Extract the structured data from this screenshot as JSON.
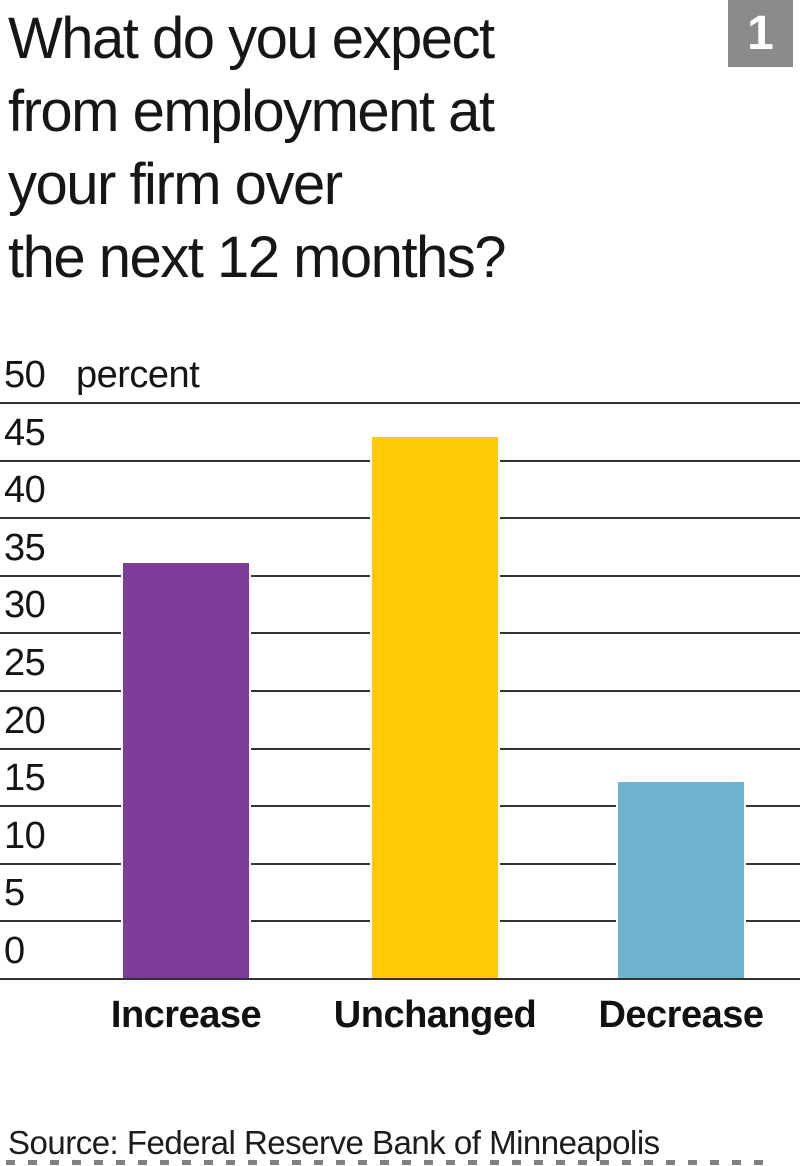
{
  "figure_number": "1",
  "title": "What do you expect\nfrom employment at\nyour firm over\nthe next 12 months?",
  "source": "Source: Federal Reserve Bank of Minneapolis",
  "chart_data": {
    "type": "bar",
    "title": "What do you expect from employment at your firm over the next 12 months?",
    "categories": [
      "Increase",
      "Unchanged",
      "Decrease"
    ],
    "values": [
      36,
      47,
      17
    ],
    "unit_label": "percent",
    "xlabel": "",
    "ylabel": "percent",
    "ylim": [
      0,
      50
    ],
    "yticks": [
      0,
      5,
      10,
      15,
      20,
      25,
      30,
      35,
      40,
      45,
      50
    ],
    "grid": "horizontal",
    "legend": "none",
    "bar_colors": [
      "#7d3c98",
      "#ffc907",
      "#6fb3ce"
    ]
  },
  "colors": {
    "badge_background": "#8b8b8b",
    "badge_text": "#ffffff",
    "gridline": "#333333",
    "text": "#161616",
    "background": "#ffffff"
  }
}
